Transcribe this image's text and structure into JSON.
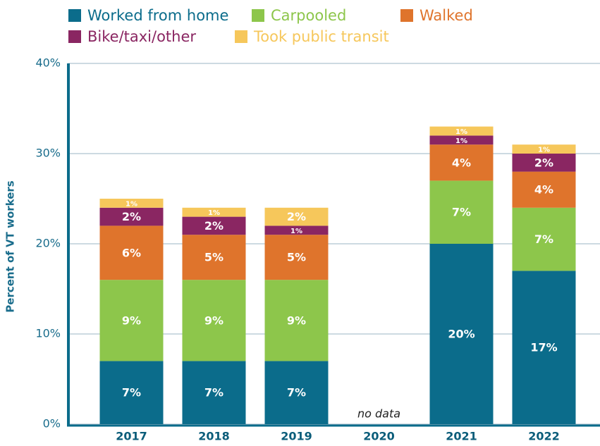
{
  "chart_data": {
    "type": "stacked_bar",
    "ylabel": "Percent of VT workers",
    "categories": [
      "2017",
      "2018",
      "2019",
      "2020",
      "2021",
      "2022"
    ],
    "series": [
      {
        "name": "Worked from home",
        "color": "#0b6c8b",
        "values": [
          7,
          7,
          7,
          null,
          20,
          17
        ],
        "value_labels": [
          "7%",
          "7%",
          "7%",
          null,
          "20%",
          "17%"
        ]
      },
      {
        "name": "Carpooled",
        "color": "#8dc64b",
        "values": [
          9,
          9,
          9,
          null,
          7,
          7
        ],
        "value_labels": [
          "9%",
          "9%",
          "9%",
          null,
          "7%",
          "7%"
        ]
      },
      {
        "name": "Walked",
        "color": "#df742c",
        "values": [
          6,
          5,
          5,
          null,
          4,
          4
        ],
        "value_labels": [
          "6%",
          "5%",
          "5%",
          null,
          "4%",
          "4%"
        ]
      },
      {
        "name": "Bike/taxi/other",
        "color": "#8a2662",
        "values": [
          2,
          2,
          1,
          null,
          1,
          2
        ],
        "value_labels": [
          "2%",
          "2%",
          "1%",
          null,
          "1%",
          "2%"
        ]
      },
      {
        "name": "Took public transit",
        "color": "#f6c75b",
        "values": [
          1,
          1,
          2,
          null,
          1,
          1
        ],
        "value_labels": [
          "1%",
          "1%",
          "2%",
          null,
          "1%",
          "1%"
        ]
      }
    ],
    "annotations": [
      {
        "category": "2020",
        "text": "no data"
      }
    ],
    "ylim": [
      0,
      40
    ],
    "yticks": [
      {
        "value": 0,
        "label": "0%"
      },
      {
        "value": 10,
        "label": "10%"
      },
      {
        "value": 20,
        "label": "20%"
      },
      {
        "value": 30,
        "label": "30%"
      },
      {
        "value": 40,
        "label": "40%"
      }
    ],
    "grid": true
  }
}
